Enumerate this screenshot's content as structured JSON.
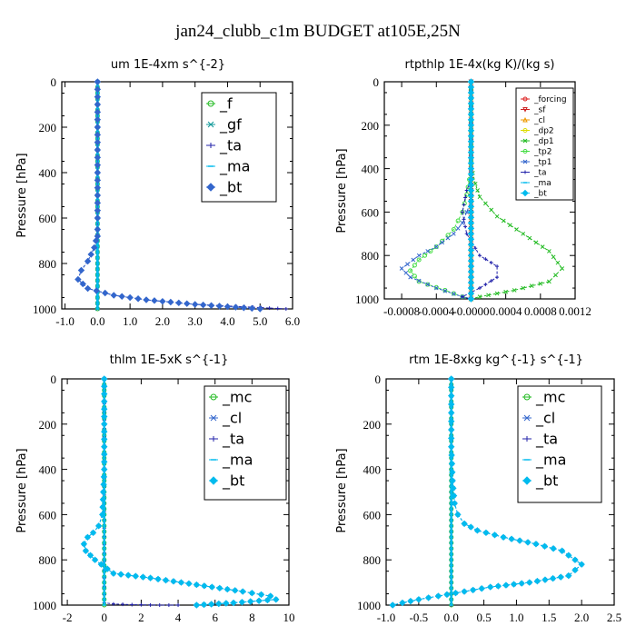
{
  "figure_title": "jan24_clubb_c1m  BUDGET at105E,25N",
  "chart_data": [
    {
      "type": "line",
      "title": "um   1E-4xm s^{-2}",
      "ylabel": "Pressure [hPa]",
      "xticks": [
        "-1.0",
        "0.0",
        "1.0",
        "2.0",
        "3.0",
        "4.0",
        "5.0",
        "6.0"
      ],
      "xlim": [
        -1.1,
        6.0
      ],
      "yticks": [
        "0",
        "200",
        "400",
        "600",
        "800",
        "1000"
      ],
      "ylim": [
        0,
        1000
      ],
      "y_inverted": true,
      "legend_placement": "top-right",
      "series": [
        {
          "name": "_f",
          "color": "#22bb22",
          "marker": "circle",
          "x": [
            0.0,
            0.0
          ],
          "y": [
            0,
            1000
          ]
        },
        {
          "name": "_gf",
          "color": "#119999",
          "marker": "x",
          "x": [
            0.0,
            0.0
          ],
          "y": [
            0,
            1000
          ]
        },
        {
          "name": "_ta",
          "color": "#2222aa",
          "marker": "plus",
          "x": [
            0,
            0,
            0,
            0,
            0,
            0,
            -0.05,
            -0.1,
            -0.2,
            -0.3,
            -0.5,
            -0.6,
            -0.3,
            0.5,
            1.5,
            3.0,
            5.8
          ],
          "y": [
            0,
            200,
            400,
            600,
            650,
            680,
            700,
            730,
            760,
            790,
            830,
            870,
            910,
            940,
            960,
            980,
            1000
          ]
        },
        {
          "name": "_ma",
          "color": "#00bbee",
          "marker": "dash",
          "x": [
            0.0,
            0.0
          ],
          "y": [
            0,
            1000
          ]
        },
        {
          "name": "_bt",
          "color": "#3366cc",
          "marker": "diamond",
          "x": [
            0,
            0,
            0,
            0,
            0,
            0,
            -0.05,
            -0.1,
            -0.2,
            -0.3,
            -0.5,
            -0.6,
            -0.3,
            0.5,
            1.5,
            3.0,
            5.0
          ],
          "y": [
            0,
            200,
            400,
            600,
            650,
            680,
            700,
            730,
            760,
            790,
            830,
            870,
            910,
            940,
            960,
            980,
            1000
          ]
        }
      ]
    },
    {
      "type": "line",
      "title": "rtpthlp   1E-4x(kg K)/(kg s)",
      "ylabel": "Pressure [hPa]",
      "xticks": [
        "-0.0008",
        "-0.0004",
        "-0.0000",
        "0.0004",
        "0.0008",
        "0.0012"
      ],
      "xlim": [
        -0.001,
        0.0012
      ],
      "yticks": [
        "0",
        "200",
        "400",
        "600",
        "800",
        "1000"
      ],
      "ylim": [
        0,
        1000
      ],
      "y_inverted": true,
      "legend_placement": "top-right",
      "series": [
        {
          "name": "_forcing",
          "color": "#dd2222",
          "marker": "circle",
          "x": [
            0,
            0
          ],
          "y": [
            0,
            1000
          ]
        },
        {
          "name": "_sf",
          "color": "#cc2222",
          "marker": "triangle-down",
          "x": [
            0,
            0
          ],
          "y": [
            0,
            1000
          ]
        },
        {
          "name": "_cl",
          "color": "#ee9900",
          "marker": "triangle-up",
          "x": [
            0,
            0
          ],
          "y": [
            0,
            1000
          ]
        },
        {
          "name": "_dp2",
          "color": "#dddd00",
          "marker": "circle",
          "x": [
            0,
            0
          ],
          "y": [
            0,
            1000
          ]
        },
        {
          "name": "_dp1",
          "color": "#22bb22",
          "marker": "x",
          "x": [
            0,
            0,
            2e-05,
            5e-05,
            0.0001,
            0.0003,
            0.0006,
            0.0009,
            0.00105,
            0.0009,
            0.0005,
            0.0001,
            0
          ],
          "y": [
            0,
            380,
            420,
            470,
            530,
            620,
            700,
            780,
            860,
            920,
            960,
            990,
            1000
          ]
        },
        {
          "name": "_tp2",
          "color": "#44dd44",
          "marker": "circle",
          "x": [
            0,
            0,
            -2e-05,
            -5e-05,
            -0.0001,
            -0.0002,
            -0.0004,
            -0.0006,
            -0.0007,
            -0.0006,
            -0.0003,
            -0.0001,
            0
          ],
          "y": [
            0,
            400,
            450,
            520,
            600,
            680,
            760,
            820,
            870,
            920,
            960,
            990,
            1000
          ]
        },
        {
          "name": "_tp1",
          "color": "#3366cc",
          "marker": "x",
          "x": [
            0,
            0,
            -5e-05,
            -0.0001,
            -0.0002,
            -0.0004,
            -0.0006,
            -0.0008,
            -0.0007,
            -0.0004,
            -0.0001,
            0
          ],
          "y": [
            0,
            550,
            600,
            650,
            700,
            760,
            800,
            860,
            900,
            950,
            990,
            1000
          ]
        },
        {
          "name": "_ta",
          "color": "#2222aa",
          "marker": "plus",
          "x": [
            0,
            0,
            -5e-05,
            -0.0001,
            -5e-05,
            0.0001,
            0.0003,
            0.0003,
            0.0001,
            -0.0001,
            0
          ],
          "y": [
            0,
            450,
            500,
            600,
            700,
            800,
            850,
            900,
            950,
            990,
            1000
          ]
        },
        {
          "name": "_ma",
          "color": "#00bbee",
          "marker": "dash",
          "x": [
            0,
            0
          ],
          "y": [
            0,
            1000
          ]
        },
        {
          "name": "_bt",
          "color": "#00bbee",
          "marker": "diamond",
          "x": [
            0,
            0
          ],
          "y": [
            0,
            1000
          ]
        }
      ]
    },
    {
      "type": "line",
      "title": "thlm   1E-5xK  s^{-1}",
      "ylabel": "Pressure [hPa]",
      "xticks": [
        "-2",
        "0",
        "2",
        "4",
        "6",
        "8",
        "10"
      ],
      "xlim": [
        -2.3,
        10.0
      ],
      "yticks": [
        "0",
        "200",
        "400",
        "600",
        "800",
        "1000"
      ],
      "ylim": [
        0,
        1000
      ],
      "y_inverted": true,
      "legend_placement": "top-right",
      "series": [
        {
          "name": "_mc",
          "color": "#22bb22",
          "marker": "circle",
          "x": [
            0,
            0
          ],
          "y": [
            0,
            1000
          ]
        },
        {
          "name": "_cl",
          "color": "#3366cc",
          "marker": "x",
          "x": [
            0,
            0,
            0,
            -0.1,
            -0.3,
            -0.6,
            -0.9,
            -1.1,
            -1.0,
            -0.5,
            0.5,
            2.5,
            5.0,
            7.5,
            9.0,
            9.3,
            7.0,
            5.0
          ],
          "y": [
            0,
            200,
            400,
            600,
            650,
            680,
            700,
            730,
            760,
            800,
            860,
            880,
            910,
            940,
            960,
            975,
            990,
            1000
          ]
        },
        {
          "name": "_ta",
          "color": "#2222aa",
          "marker": "plus",
          "x": [
            0,
            0,
            0.5,
            1.5,
            3.0,
            4.0
          ],
          "y": [
            0,
            990,
            995,
            998,
            1000,
            1000
          ]
        },
        {
          "name": "_ma",
          "color": "#00bbee",
          "marker": "dash",
          "x": [
            0,
            0
          ],
          "y": [
            0,
            1000
          ]
        },
        {
          "name": "_bt",
          "color": "#00bbee",
          "marker": "diamond",
          "x": [
            0,
            0,
            0,
            -0.1,
            -0.3,
            -0.6,
            -0.9,
            -1.1,
            -1.0,
            -0.5,
            0.5,
            2.5,
            5.0,
            7.5,
            9.0,
            9.3,
            7.0,
            5.0
          ],
          "y": [
            0,
            200,
            400,
            600,
            650,
            680,
            700,
            730,
            760,
            800,
            860,
            880,
            910,
            940,
            960,
            975,
            990,
            1000
          ]
        }
      ]
    },
    {
      "type": "line",
      "title": "rtm   1E-8xkg kg^{-1} s^{-1}",
      "ylabel": "Pressure [hPa]",
      "xticks": [
        "-1.0",
        "-0.5",
        "0.0",
        "0.5",
        "1.0",
        "1.5",
        "2.0",
        "2.5"
      ],
      "xlim": [
        -1.0,
        2.5
      ],
      "yticks": [
        "0",
        "200",
        "400",
        "600",
        "800",
        "1000"
      ],
      "ylim": [
        0,
        1000
      ],
      "y_inverted": true,
      "legend_placement": "top-right",
      "series": [
        {
          "name": "_mc",
          "color": "#22bb22",
          "marker": "circle",
          "x": [
            0,
            0
          ],
          "y": [
            0,
            1000
          ]
        },
        {
          "name": "_cl",
          "color": "#3366cc",
          "marker": "x",
          "x": [
            0,
            0,
            0.02,
            0.05,
            0.1,
            0.2,
            0.4,
            0.8,
            1.3,
            1.7,
            2.0,
            1.8,
            1.2,
            0.6,
            0.2,
            -0.2,
            -0.5,
            -0.75,
            -0.9
          ],
          "y": [
            0,
            300,
            450,
            550,
            600,
            640,
            670,
            700,
            730,
            760,
            820,
            870,
            900,
            920,
            940,
            960,
            975,
            990,
            1000
          ]
        },
        {
          "name": "_ta",
          "color": "#2222aa",
          "marker": "plus",
          "x": [
            0,
            0
          ],
          "y": [
            0,
            1000
          ]
        },
        {
          "name": "_ma",
          "color": "#00bbee",
          "marker": "dash",
          "x": [
            0,
            0
          ],
          "y": [
            0,
            1000
          ]
        },
        {
          "name": "_bt",
          "color": "#00bbee",
          "marker": "diamond",
          "x": [
            0,
            0,
            0.02,
            0.05,
            0.1,
            0.2,
            0.4,
            0.8,
            1.3,
            1.7,
            2.0,
            1.8,
            1.2,
            0.6,
            0.2,
            -0.2,
            -0.5,
            -0.75,
            -0.9
          ],
          "y": [
            0,
            300,
            450,
            550,
            600,
            640,
            670,
            700,
            730,
            760,
            820,
            870,
            900,
            920,
            940,
            960,
            975,
            990,
            1000
          ]
        }
      ]
    }
  ]
}
